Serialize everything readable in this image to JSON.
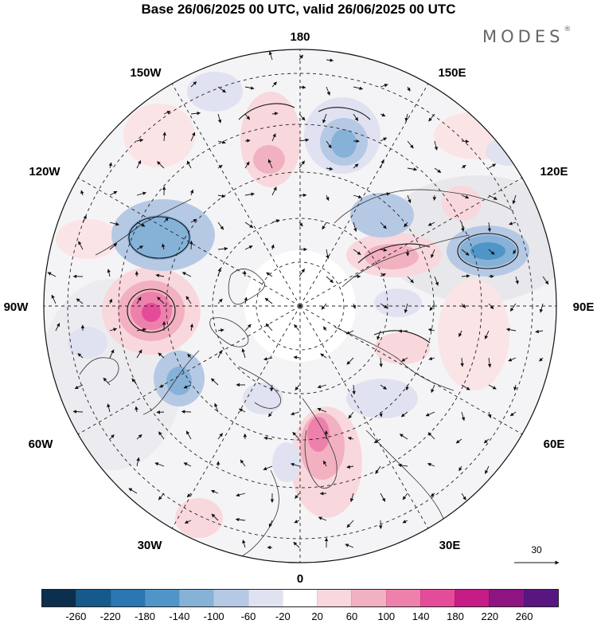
{
  "title": "Base 26/06/2025 00 UTC, valid 26/06/2025 00 UTC",
  "brand": "MODES",
  "brand_mark": "®",
  "map": {
    "projection": "north-polar-stereographic",
    "longitude_labels": {
      "top": "180",
      "bottom": "0",
      "left": "90W",
      "right": "90E",
      "upper_left_1": "150W",
      "upper_left_2": "120W",
      "lower_left_1": "60W",
      "lower_left_2": "30W",
      "upper_right_1": "150E",
      "upper_right_2": "120E",
      "lower_right_1": "60E",
      "lower_right_2": "30E"
    },
    "reference_vector": "30"
  },
  "colorbar": {
    "ticks": [
      "-260",
      "-220",
      "-180",
      "-140",
      "-100",
      "-60",
      "-20",
      "20",
      "60",
      "100",
      "140",
      "180",
      "220",
      "260"
    ],
    "colors": [
      "#0c2f4d",
      "#155a8a",
      "#2b77b3",
      "#4f95c8",
      "#86b2d8",
      "#b5c9e4",
      "#e1e2f1",
      "#ffffff",
      "#f8d8dc",
      "#f2b1c0",
      "#ee80ac",
      "#e44c9a",
      "#c51c86",
      "#8e1482",
      "#591680"
    ]
  }
}
